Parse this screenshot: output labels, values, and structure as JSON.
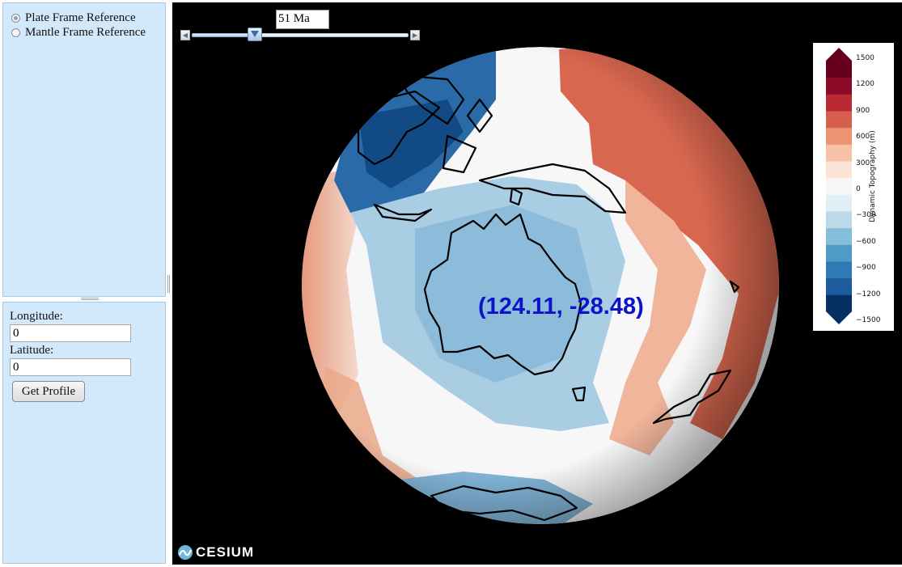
{
  "left_panel": {
    "reference_options": [
      {
        "label": "Plate Frame Reference",
        "checked": true
      },
      {
        "label": "Mantle Frame Reference",
        "checked": false
      }
    ],
    "longitude_label": "Longitude:",
    "longitude_value": "0",
    "latitude_label": "Latitude:",
    "latitude_value": "0",
    "get_profile_label": "Get Profile"
  },
  "viewer": {
    "time_label": "51 Ma",
    "time_slider_fraction": 0.29,
    "coordinate_label": "(124.11, -28.48)",
    "brand": "CESIUM"
  },
  "colorbar": {
    "title": "Dynamic Topography (m)",
    "ticks": [
      "1500",
      "1200",
      "900",
      "600",
      "300",
      "0",
      "−300",
      "−600",
      "−900",
      "−1200",
      "−1500"
    ],
    "min": -1500,
    "max": 1500,
    "colors": [
      "#053061",
      "#1c5c9c",
      "#2f79b5",
      "#4f9bc7",
      "#86bdda",
      "#bcd9ea",
      "#e2eef5",
      "#f7f7f7",
      "#fbe3d6",
      "#f7c1a6",
      "#ec9474",
      "#d6604d",
      "#bb2a33",
      "#8d0a26",
      "#67001f"
    ]
  }
}
